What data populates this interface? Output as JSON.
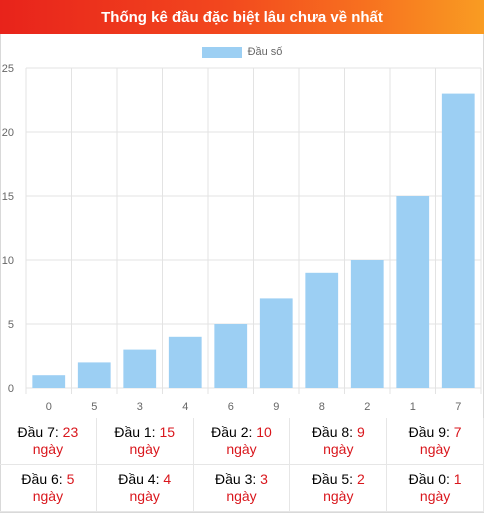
{
  "header": {
    "title": "Thống kê đầu đặc biệt lâu chưa về nhất"
  },
  "colors": {
    "bar": "#9ccff3",
    "header_start": "#e8231b",
    "header_end": "#f99c22",
    "number": "#d9161c"
  },
  "chart_data": {
    "type": "bar",
    "categories": [
      "0",
      "5",
      "3",
      "4",
      "6",
      "9",
      "8",
      "2",
      "1",
      "7"
    ],
    "series": [
      {
        "name": "Đầu số",
        "values": [
          1,
          2,
          3,
          4,
          5,
          7,
          9,
          10,
          15,
          23
        ]
      }
    ],
    "ylim": [
      0,
      25
    ],
    "yticks": [
      0,
      5,
      10,
      15,
      20,
      25
    ],
    "grid": true,
    "legend": "top-center"
  },
  "stats": {
    "unit": "ngày",
    "items": [
      {
        "label": "Đầu 7:",
        "value": "23"
      },
      {
        "label": "Đầu 1:",
        "value": "15"
      },
      {
        "label": "Đầu 2:",
        "value": "10"
      },
      {
        "label": "Đầu 8:",
        "value": "9"
      },
      {
        "label": "Đầu 9:",
        "value": "7"
      },
      {
        "label": "Đầu 6:",
        "value": "5"
      },
      {
        "label": "Đầu 4:",
        "value": "4"
      },
      {
        "label": "Đầu 3:",
        "value": "3"
      },
      {
        "label": "Đầu 5:",
        "value": "2"
      },
      {
        "label": "Đầu 0:",
        "value": "1"
      }
    ]
  }
}
